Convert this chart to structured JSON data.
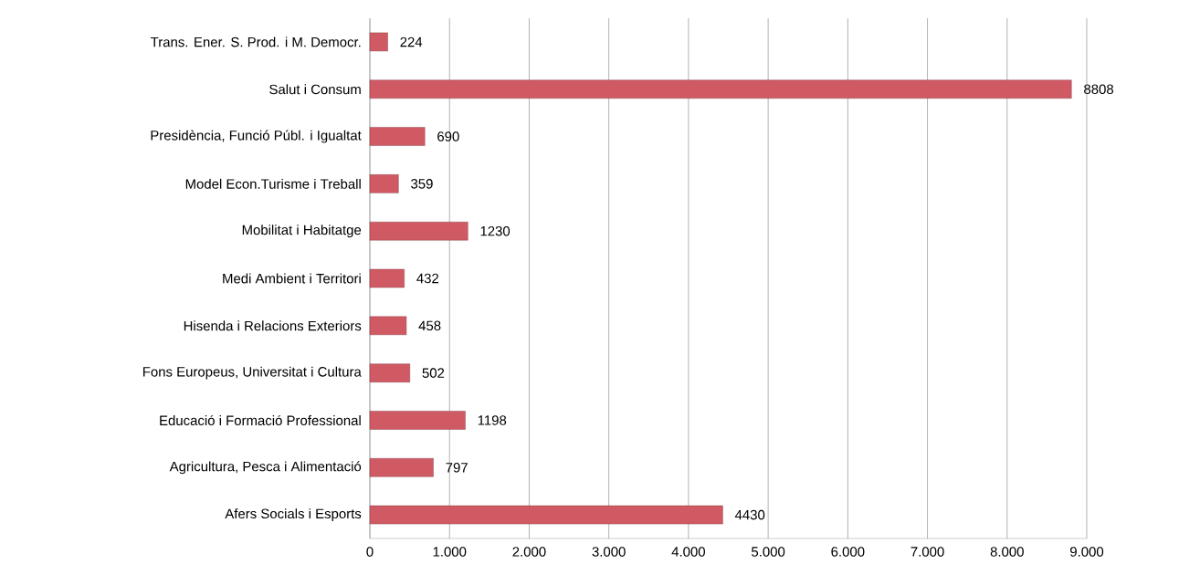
{
  "chart_data": {
    "type": "bar",
    "orientation": "horizontal",
    "categories": [
      "Trans. Ener. S. Prod. i M. Democr.",
      "Salut i Consum",
      "Presidència, Funció Públ. i Igualtat",
      "Model Econ.Turisme i Treball",
      "Mobilitat i Habitatge",
      "Medi Ambient i Territori",
      "Hisenda i Relacions Exteriors",
      "Fons Europeus, Universitat i Cultura",
      "Educació i Formació Professional",
      "Agricultura, Pesca i Alimentació",
      "Afers Socials i Esports"
    ],
    "values": [
      224,
      8808,
      690,
      359,
      1230,
      432,
      458,
      502,
      1198,
      797,
      4430
    ],
    "color": "#d05a64",
    "xlim": [
      0,
      9000
    ],
    "xticks": [
      0,
      {
        "value": 1000,
        "label": "1.000"
      },
      {
        "value": 2000,
        "label": "2.000"
      },
      {
        "value": 3000,
        "label": "3.000"
      },
      {
        "value": 4000,
        "label": "4.000"
      },
      {
        "value": 5000,
        "label": "5.000"
      },
      {
        "value": 6000,
        "label": "6.000"
      },
      {
        "value": 7000,
        "label": "7.000"
      },
      {
        "value": 8000,
        "label": "8.000"
      },
      {
        "value": 9000,
        "label": "9.000"
      }
    ],
    "grid": "x",
    "data_labels": true
  }
}
